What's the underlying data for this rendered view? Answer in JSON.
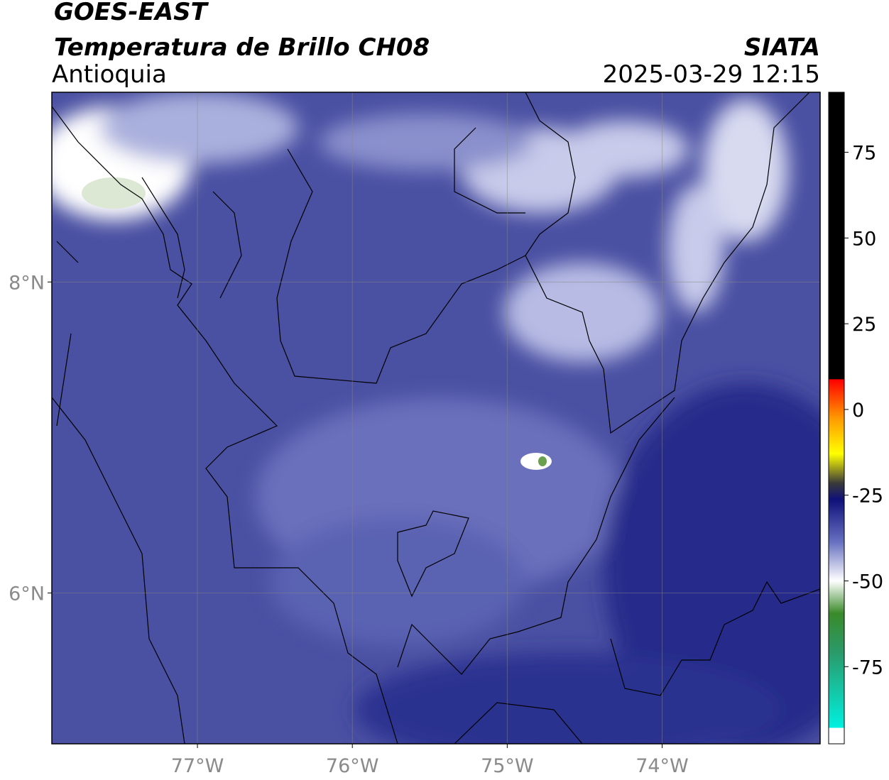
{
  "header": {
    "title": "GOES-EAST",
    "subtitle": "Temperatura de Brillo CH08",
    "region": "Antioquia",
    "source": "SIATA",
    "datetime": "2025-03-29 12:15"
  },
  "map": {
    "xlim": [
      -77.94,
      -72.98
    ],
    "ylim": [
      5.03,
      9.22
    ],
    "lon_ticks": [
      {
        "value": -77,
        "label": "77°W"
      },
      {
        "value": -76,
        "label": "76°W"
      },
      {
        "value": -75,
        "label": "75°W"
      },
      {
        "value": -74,
        "label": "74°W"
      }
    ],
    "lat_ticks": [
      {
        "value": 8,
        "label": "8°N"
      },
      {
        "value": 6,
        "label": "6°N"
      }
    ]
  },
  "colorbar": {
    "lim": [
      -97.5,
      92.5
    ],
    "ticks": [
      75,
      50,
      25,
      0,
      -25,
      -50,
      -75
    ]
  }
}
